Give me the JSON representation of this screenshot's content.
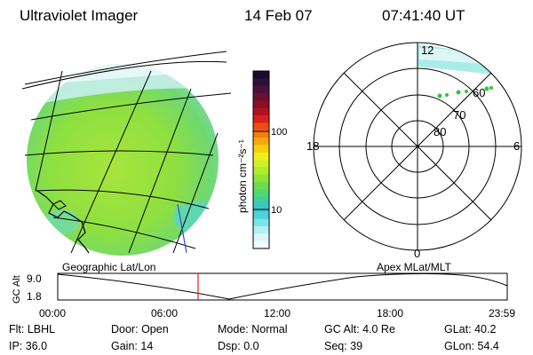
{
  "header": {
    "instrument": "Ultraviolet Imager",
    "date": "14 Feb 07",
    "time": "07:41:40 UT"
  },
  "colorbar": {
    "unit_label": "photon cm⁻²s⁻¹",
    "ticks": [
      "100",
      "10"
    ],
    "colors": [
      "#1a0a2e",
      "#2e0f3a",
      "#4a1040",
      "#6a1030",
      "#8a0f25",
      "#b01220",
      "#d8201c",
      "#f04a14",
      "#f57d0c",
      "#f7a70c",
      "#f4cf10",
      "#eef01a",
      "#d0f224",
      "#b0ec2e",
      "#8fe438",
      "#6edc48",
      "#52d870",
      "#3ecfa0",
      "#3cc6c8",
      "#4cd2dc",
      "#7ae4ea",
      "#b4f0f2",
      "#dcf6f8",
      "#f2fcfd"
    ]
  },
  "polar_plot": {
    "mlt_labels": {
      "top": "12",
      "bottom": "0",
      "left": "18",
      "right": "6"
    },
    "lat_labels": [
      "60",
      "70",
      "80"
    ]
  },
  "timeline": {
    "left_title": "Geographic Lat/Lon",
    "right_title": "Apex MLat/MLT",
    "axis_label": "GC Alt",
    "y_ticks": [
      "9.0",
      "1.8"
    ],
    "x_ticks": [
      "00:00",
      "06:00",
      "12:00",
      "18:00",
      "23:59"
    ]
  },
  "info": {
    "row1": [
      {
        "label": "Flt:",
        "value": "LBHL"
      },
      {
        "label": "Door:",
        "value": "Open"
      },
      {
        "label": "Mode:",
        "value": "Normal"
      },
      {
        "label": "GC Alt:",
        "value": "4.0 Re"
      },
      {
        "label": "GLat:",
        "value": "40.2"
      }
    ],
    "row2": [
      {
        "label": "IP:",
        "value": "36.0"
      },
      {
        "label": "Gain:",
        "value": "14"
      },
      {
        "label": "Dsp:",
        "value": "0.0"
      },
      {
        "label": "Seq:",
        "value": "39"
      },
      {
        "label": "GLon:",
        "value": "54.4"
      }
    ]
  }
}
